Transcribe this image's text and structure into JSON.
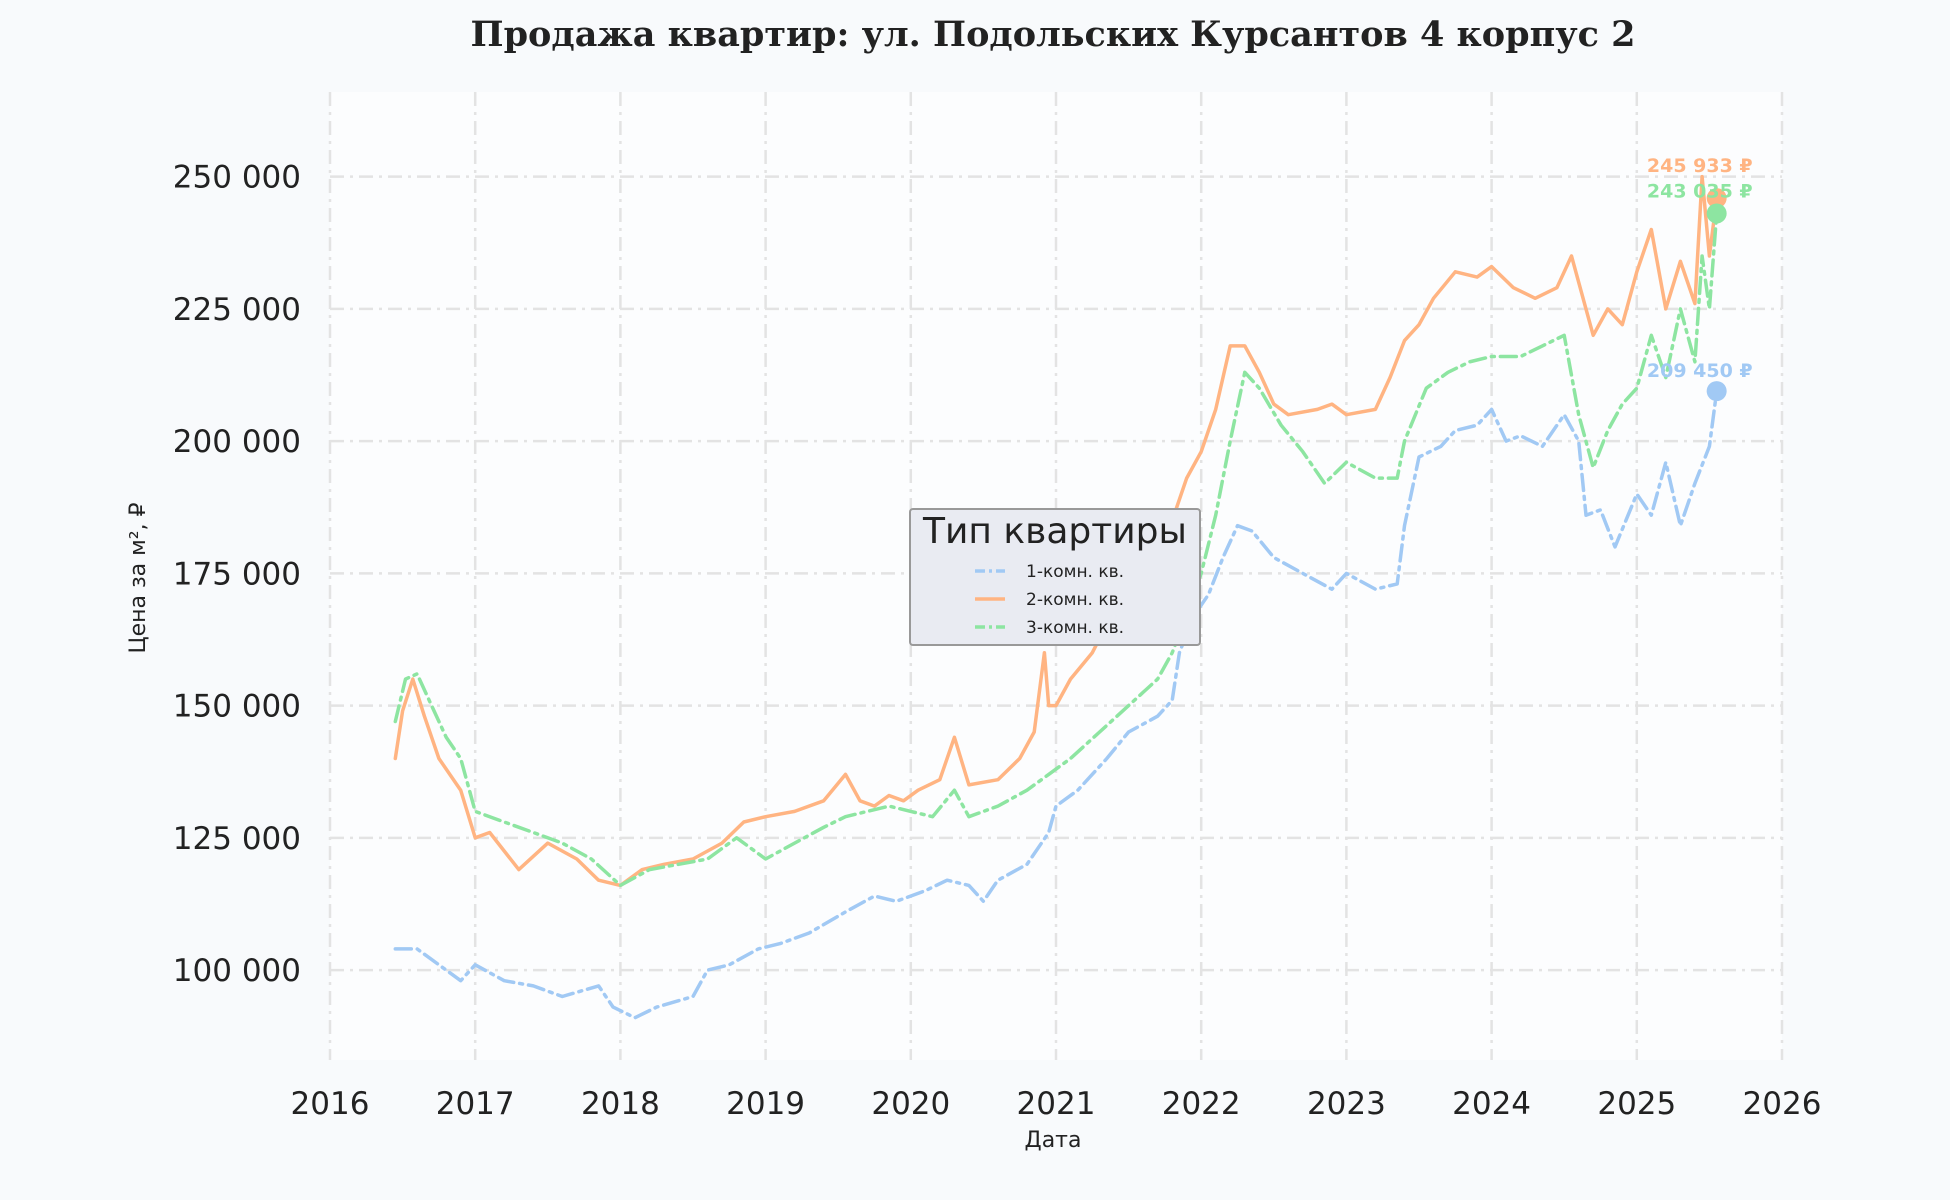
{
  "chart_data": {
    "type": "line",
    "title": "Продажа квартир: ул. Подольских Курсантов 4 корпус 2",
    "xlabel": "Дата",
    "ylabel": "Цена за м², ₽",
    "xlim": [
      2016,
      2026
    ],
    "ylim": [
      83000,
      266000
    ],
    "x_ticks": [
      "2016",
      "2017",
      "2018",
      "2019",
      "2020",
      "2021",
      "2022",
      "2023",
      "2024",
      "2025",
      "2026"
    ],
    "y_ticks": [
      {
        "value": 100000,
        "label": "100 000"
      },
      {
        "value": 125000,
        "label": "125 000"
      },
      {
        "value": 150000,
        "label": "150 000"
      },
      {
        "value": 175000,
        "label": "175 000"
      },
      {
        "value": 200000,
        "label": "200 000"
      },
      {
        "value": 225000,
        "label": "225 000"
      },
      {
        "value": 250000,
        "label": "250 000"
      }
    ],
    "grid": true,
    "legend": {
      "title": "Тип квартиры",
      "position": "center"
    },
    "series": [
      {
        "name": "1-комн. кв.",
        "color": "#a1c9f4",
        "style": "dashdot",
        "end_label": "209 450 ₽",
        "end_value": 209450,
        "x": [
          2016.45,
          2016.6,
          2016.75,
          2016.9,
          2017.0,
          2017.2,
          2017.4,
          2017.6,
          2017.85,
          2017.95,
          2018.1,
          2018.25,
          2018.5,
          2018.6,
          2018.75,
          2018.95,
          2019.1,
          2019.3,
          2019.55,
          2019.75,
          2019.9,
          2020.1,
          2020.25,
          2020.4,
          2020.5,
          2020.6,
          2020.8,
          2020.95,
          2021.0,
          2021.15,
          2021.35,
          2021.5,
          2021.7,
          2021.8,
          2021.85,
          2021.95,
          2022.05,
          2022.15,
          2022.25,
          2022.35,
          2022.5,
          2022.7,
          2022.9,
          2023.0,
          2023.2,
          2023.35,
          2023.4,
          2023.5,
          2023.65,
          2023.75,
          2023.9,
          2024.0,
          2024.1,
          2024.2,
          2024.35,
          2024.5,
          2024.6,
          2024.65,
          2024.75,
          2024.85,
          2025.0,
          2025.1,
          2025.2,
          2025.3,
          2025.4,
          2025.5,
          2025.55
        ],
        "y": [
          104000,
          104000,
          101000,
          98000,
          101000,
          98000,
          97000,
          95000,
          97000,
          93000,
          91000,
          93000,
          95000,
          100000,
          101000,
          104000,
          105000,
          107000,
          111000,
          114000,
          113000,
          115000,
          117000,
          116000,
          113000,
          117000,
          120000,
          126000,
          131000,
          134000,
          140000,
          145000,
          148000,
          151000,
          160000,
          167000,
          171000,
          178000,
          184000,
          183000,
          178000,
          175000,
          172000,
          175000,
          172000,
          173000,
          184000,
          197000,
          199000,
          202000,
          203000,
          206000,
          200000,
          201000,
          199000,
          205000,
          200000,
          186000,
          187000,
          180000,
          190000,
          186000,
          196000,
          184000,
          192000,
          199000,
          209450
        ]
      },
      {
        "name": "2-комн. кв.",
        "color": "#ffb482",
        "style": "solid",
        "end_label": "245 933 ₽",
        "end_value": 245933,
        "x": [
          2016.45,
          2016.5,
          2016.57,
          2016.65,
          2016.75,
          2016.9,
          2017.0,
          2017.1,
          2017.3,
          2017.5,
          2017.7,
          2017.85,
          2018.0,
          2018.15,
          2018.3,
          2018.5,
          2018.7,
          2018.85,
          2019.0,
          2019.2,
          2019.4,
          2019.55,
          2019.65,
          2019.75,
          2019.85,
          2019.95,
          2020.05,
          2020.2,
          2020.3,
          2020.4,
          2020.6,
          2020.75,
          2020.85,
          2020.92,
          2020.95,
          2021.0,
          2021.1,
          2021.25,
          2021.4,
          2021.55,
          2021.7,
          2021.8,
          2021.9,
          2022.0,
          2022.1,
          2022.2,
          2022.3,
          2022.4,
          2022.5,
          2022.6,
          2022.8,
          2022.9,
          2023.0,
          2023.2,
          2023.3,
          2023.4,
          2023.5,
          2023.6,
          2023.75,
          2023.9,
          2024.0,
          2024.15,
          2024.3,
          2024.45,
          2024.55,
          2024.7,
          2024.8,
          2024.9,
          2025.0,
          2025.1,
          2025.2,
          2025.3,
          2025.4,
          2025.45,
          2025.5,
          2025.55
        ],
        "y": [
          140000,
          149000,
          155000,
          148000,
          140000,
          134000,
          125000,
          126000,
          119000,
          124000,
          121000,
          117000,
          116000,
          119000,
          120000,
          121000,
          124000,
          128000,
          129000,
          130000,
          132000,
          137000,
          132000,
          131000,
          133000,
          132000,
          134000,
          136000,
          144000,
          135000,
          136000,
          140000,
          145000,
          160000,
          150000,
          150000,
          155000,
          160000,
          168000,
          172000,
          180000,
          185000,
          193000,
          198000,
          206000,
          218000,
          218000,
          213000,
          207000,
          205000,
          206000,
          207000,
          205000,
          206000,
          212000,
          219000,
          222000,
          227000,
          232000,
          231000,
          233000,
          229000,
          227000,
          229000,
          235000,
          220000,
          225000,
          222000,
          232000,
          240000,
          225000,
          234000,
          226000,
          250000,
          235000,
          245933
        ]
      },
      {
        "name": "3-комн. кв.",
        "color": "#8de5a1",
        "style": "dashdot",
        "end_label": "243 035 ₽",
        "end_value": 243035,
        "x": [
          2016.45,
          2016.52,
          2016.6,
          2016.7,
          2016.8,
          2016.9,
          2017.0,
          2017.2,
          2017.4,
          2017.6,
          2017.8,
          2018.0,
          2018.2,
          2018.4,
          2018.6,
          2018.8,
          2019.0,
          2019.2,
          2019.4,
          2019.55,
          2019.7,
          2019.85,
          2020.0,
          2020.15,
          2020.3,
          2020.4,
          2020.6,
          2020.8,
          2020.95,
          2021.1,
          2021.3,
          2021.5,
          2021.7,
          2021.8,
          2021.9,
          2022.0,
          2022.1,
          2022.2,
          2022.3,
          2022.4,
          2022.55,
          2022.7,
          2022.85,
          2023.0,
          2023.2,
          2023.35,
          2023.4,
          2023.55,
          2023.7,
          2023.85,
          2024.0,
          2024.2,
          2024.35,
          2024.5,
          2024.6,
          2024.7,
          2024.8,
          2024.9,
          2025.0,
          2025.1,
          2025.2,
          2025.3,
          2025.4,
          2025.45,
          2025.5,
          2025.55
        ],
        "y": [
          147000,
          155000,
          156000,
          150000,
          144000,
          140000,
          130000,
          128000,
          126000,
          124000,
          121000,
          116000,
          119000,
          120000,
          121000,
          125000,
          121000,
          124000,
          127000,
          129000,
          130000,
          131000,
          130000,
          129000,
          134000,
          129000,
          131000,
          134000,
          137000,
          140000,
          145000,
          150000,
          155000,
          160000,
          167000,
          175000,
          186000,
          200000,
          213000,
          210000,
          203000,
          198000,
          192000,
          196000,
          193000,
          193000,
          200000,
          210000,
          213000,
          215000,
          216000,
          216000,
          218000,
          220000,
          205000,
          195000,
          202000,
          207000,
          210000,
          220000,
          212000,
          225000,
          215000,
          235000,
          225000,
          243035
        ]
      }
    ]
  }
}
